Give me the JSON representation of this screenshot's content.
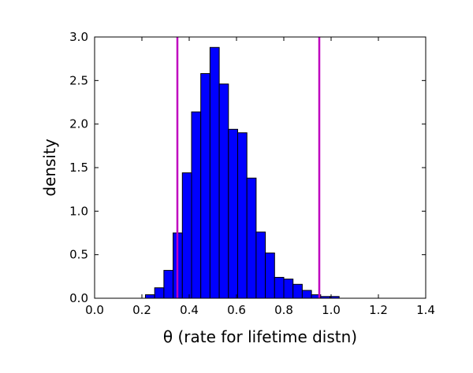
{
  "chart_data": {
    "type": "bar",
    "xlabel": "θ  (rate for lifetime distn)",
    "ylabel": "density",
    "xlim": [
      0.0,
      1.4
    ],
    "ylim": [
      0.0,
      3.0
    ],
    "grid": false,
    "bar_color": "#0000ff",
    "bar_edge_color": "#000000",
    "line_color": "#bf00bf",
    "vertical_lines": [
      0.35,
      0.95
    ],
    "xticks": [
      {
        "value": 0.0,
        "label": "0.0"
      },
      {
        "value": 0.2,
        "label": "0.2"
      },
      {
        "value": 0.4,
        "label": "0.4"
      },
      {
        "value": 0.6,
        "label": "0.6"
      },
      {
        "value": 0.8,
        "label": "0.8"
      },
      {
        "value": 1.0,
        "label": "1.0"
      },
      {
        "value": 1.2,
        "label": "1.2"
      },
      {
        "value": 1.4,
        "label": "1.4"
      }
    ],
    "yticks": [
      {
        "value": 0.0,
        "label": "0.0"
      },
      {
        "value": 0.5,
        "label": "0.5"
      },
      {
        "value": 1.0,
        "label": "1.0"
      },
      {
        "value": 1.5,
        "label": "1.5"
      },
      {
        "value": 2.0,
        "label": "2.0"
      },
      {
        "value": 2.5,
        "label": "2.5"
      },
      {
        "value": 3.0,
        "label": "3.0"
      }
    ],
    "bins": [
      {
        "x0": 0.215,
        "x1": 0.254,
        "value": 0.04
      },
      {
        "x0": 0.254,
        "x1": 0.293,
        "value": 0.12
      },
      {
        "x0": 0.293,
        "x1": 0.332,
        "value": 0.32
      },
      {
        "x0": 0.332,
        "x1": 0.371,
        "value": 0.75
      },
      {
        "x0": 0.371,
        "x1": 0.41,
        "value": 1.44
      },
      {
        "x0": 0.41,
        "x1": 0.449,
        "value": 2.14
      },
      {
        "x0": 0.449,
        "x1": 0.488,
        "value": 2.58
      },
      {
        "x0": 0.488,
        "x1": 0.527,
        "value": 2.88
      },
      {
        "x0": 0.527,
        "x1": 0.566,
        "value": 2.46
      },
      {
        "x0": 0.566,
        "x1": 0.605,
        "value": 1.94
      },
      {
        "x0": 0.605,
        "x1": 0.644,
        "value": 1.9
      },
      {
        "x0": 0.644,
        "x1": 0.683,
        "value": 1.38
      },
      {
        "x0": 0.683,
        "x1": 0.722,
        "value": 0.76
      },
      {
        "x0": 0.722,
        "x1": 0.761,
        "value": 0.52
      },
      {
        "x0": 0.761,
        "x1": 0.8,
        "value": 0.24
      },
      {
        "x0": 0.8,
        "x1": 0.839,
        "value": 0.22
      },
      {
        "x0": 0.839,
        "x1": 0.878,
        "value": 0.16
      },
      {
        "x0": 0.878,
        "x1": 0.917,
        "value": 0.09
      },
      {
        "x0": 0.917,
        "x1": 0.956,
        "value": 0.04
      },
      {
        "x0": 0.956,
        "x1": 0.995,
        "value": 0.02
      },
      {
        "x0": 0.995,
        "x1": 1.034,
        "value": 0.02
      }
    ]
  }
}
